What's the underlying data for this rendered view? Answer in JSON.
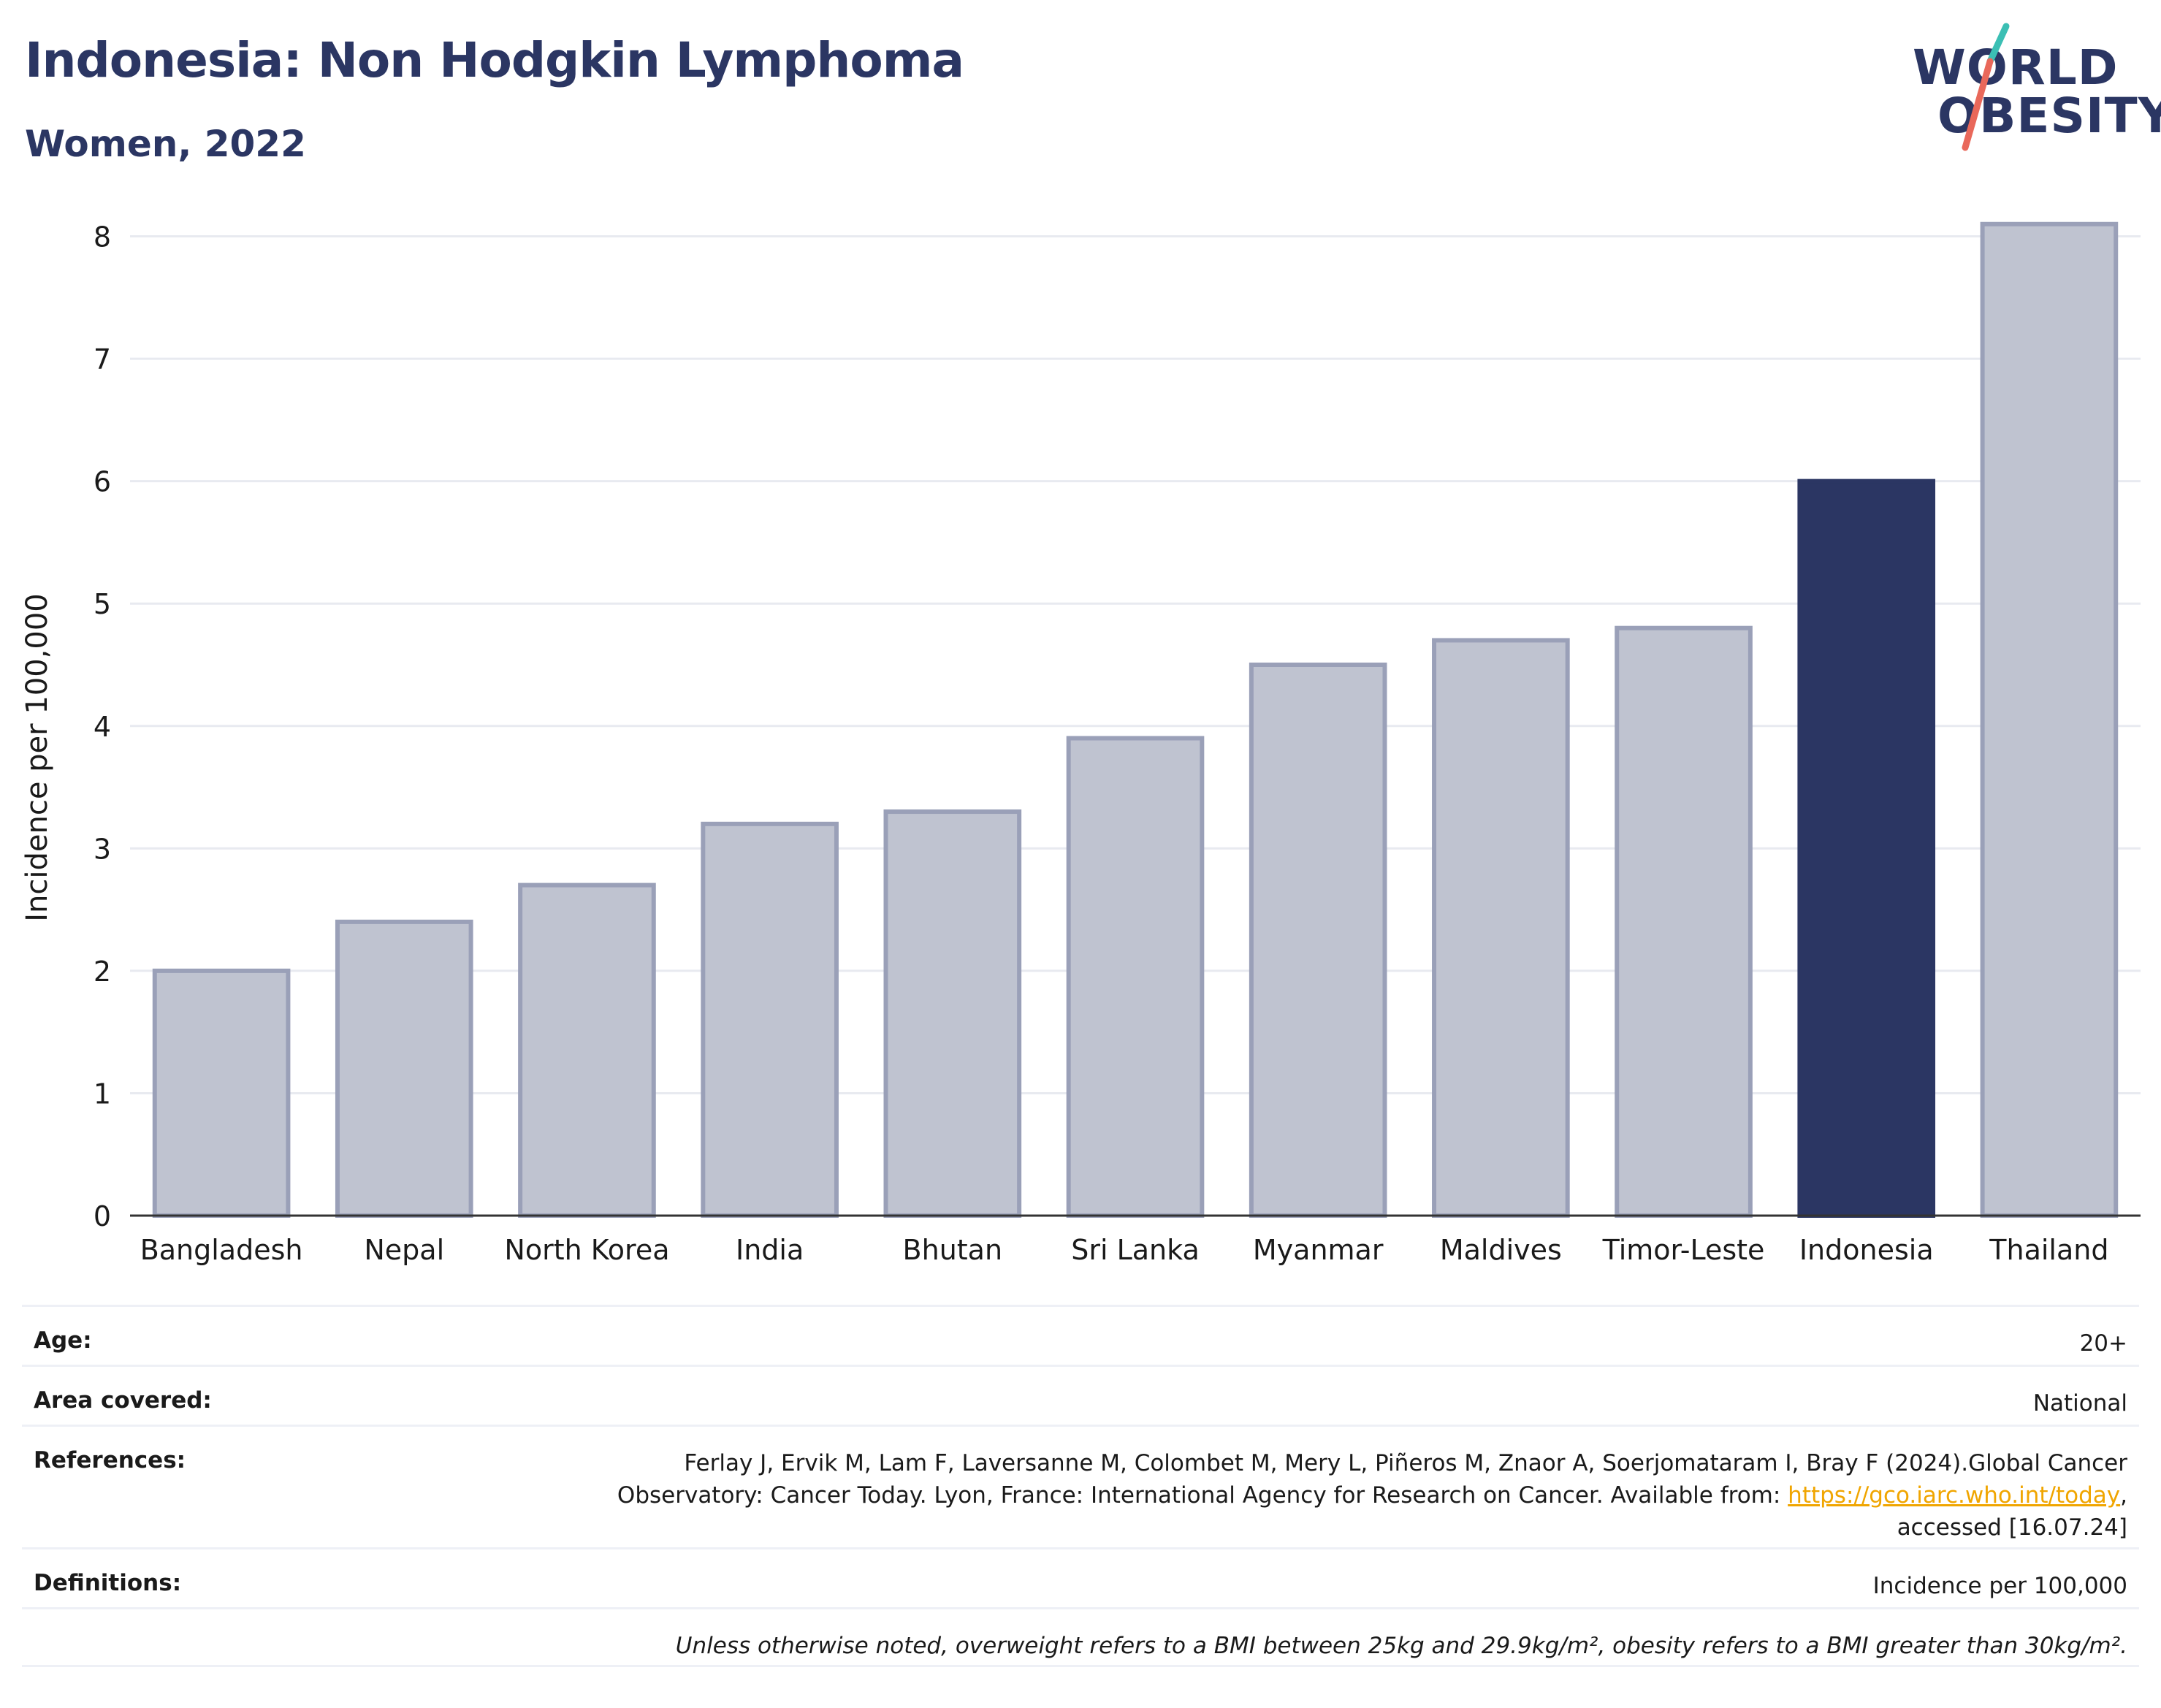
{
  "header": {
    "title": "Indonesia: Non Hodgkin Lymphoma",
    "subtitle": "Women, 2022"
  },
  "logo": {
    "line1": "WORLD",
    "line2": "OBESITY",
    "text_color": "#2b3663",
    "slash_colors": [
      "#3bbfb4",
      "#e9685a"
    ]
  },
  "colors": {
    "bar_default": "#bfc3d0",
    "bar_default_stroke": "#9aa0b8",
    "bar_highlight": "#2b3663",
    "grid": "#e8eaf0",
    "axis": "#333333"
  },
  "chart_data": {
    "type": "bar",
    "categories": [
      "Bangladesh",
      "Nepal",
      "North Korea",
      "India",
      "Bhutan",
      "Sri Lanka",
      "Myanmar",
      "Maldives",
      "Timor-Leste",
      "Indonesia",
      "Thailand"
    ],
    "values": [
      2.0,
      2.4,
      2.7,
      3.2,
      3.3,
      3.9,
      4.5,
      4.7,
      4.8,
      6.0,
      8.1
    ],
    "highlight": "Indonesia",
    "title": "Indonesia: Non Hodgkin Lymphoma",
    "subtitle": "Women, 2022",
    "xlabel": "",
    "ylabel": "Incidence per 100,000",
    "ylim": [
      0,
      8.2
    ],
    "yticks": [
      0,
      1,
      2,
      3,
      4,
      5,
      6,
      7,
      8
    ],
    "grid": true,
    "legend": "none"
  },
  "meta": {
    "age_label": "Age:",
    "age_value": "20+",
    "area_label": "Area covered:",
    "area_value": "National",
    "references_label": "References:",
    "references_line1": "Ferlay J, Ervik M, Lam F, Laversanne M, Colombet M, Mery L, Piñeros M, Znaor A, Soerjomataram I, Bray F (2024).Global Cancer",
    "references_line2_pre": "Observatory: Cancer Today. Lyon, France: International Agency for Research on Cancer. Available from: ",
    "references_link": "https://gco.iarc.who.int/today",
    "references_line2_post": ",",
    "references_line3": "accessed [16.07.24]",
    "definitions_label": "Definitions:",
    "definitions_value": "Incidence per 100,000",
    "note": "Unless otherwise noted, overweight refers to a BMI between 25kg and 29.9kg/m², obesity refers to a BMI greater than 30kg/m²."
  }
}
